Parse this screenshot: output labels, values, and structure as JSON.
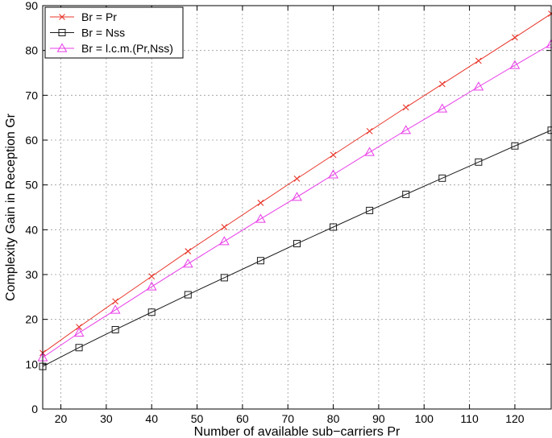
{
  "chart_data": {
    "type": "line",
    "xlabel": "Number of available sub−carriers Pr",
    "ylabel": "Complexity Gain in Reception Gr",
    "xlim": [
      16,
      128
    ],
    "ylim": [
      0,
      90
    ],
    "x_ticks": [
      20,
      30,
      40,
      50,
      60,
      70,
      80,
      90,
      100,
      110,
      120
    ],
    "y_ticks": [
      0,
      10,
      20,
      30,
      40,
      50,
      60,
      70,
      80,
      90
    ],
    "grid": true,
    "legend_position": "top-left",
    "x": [
      16,
      24,
      32,
      40,
      48,
      56,
      64,
      72,
      80,
      88,
      96,
      104,
      112,
      120,
      128
    ],
    "series": [
      {
        "name": "Br = Pr",
        "color": "#e8352a",
        "marker": "x",
        "values": [
          12.5,
          18.3,
          24.0,
          29.6,
          35.2,
          40.6,
          46.0,
          51.4,
          56.7,
          62.0,
          67.3,
          72.5,
          77.7,
          82.9,
          88.2
        ]
      },
      {
        "name": "Br = Nss",
        "color": "#1a1a1a",
        "marker": "square",
        "values": [
          9.5,
          13.7,
          17.7,
          21.6,
          25.5,
          29.3,
          33.1,
          36.9,
          40.6,
          44.3,
          47.9,
          51.5,
          55.1,
          58.7,
          62.2
        ]
      },
      {
        "name": "Br = l.c.m.(Pr,Nss)",
        "color": "#e83be8",
        "marker": "triangle",
        "values": [
          11.5,
          17.0,
          22.1,
          27.3,
          32.4,
          37.4,
          42.4,
          47.3,
          52.3,
          57.3,
          62.2,
          67.0,
          71.9,
          76.7,
          81.4
        ]
      }
    ]
  }
}
